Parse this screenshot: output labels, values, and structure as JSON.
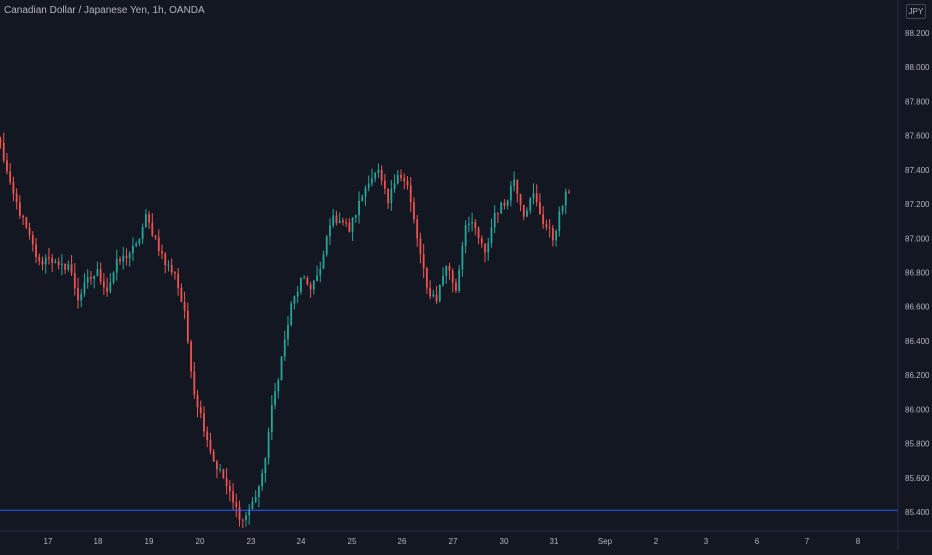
{
  "header": {
    "symbol_title": "Canadian Dollar / Japanese Yen, 1h, OANDA",
    "currency_label": "JPY"
  },
  "colors": {
    "background": "#131722",
    "bullish": "#26a69a",
    "bearish": "#ef5350",
    "axis_text": "#b2b5be",
    "horizontal_line": "#2962ff"
  },
  "chart_data": {
    "type": "candlestick",
    "title": "Canadian Dollar / Japanese Yen, 1h, OANDA",
    "xlabel": "",
    "ylabel": "",
    "ylim": [
      85.32,
      88.3
    ],
    "y_ticks": [
      88.2,
      88.0,
      87.8,
      87.6,
      87.4,
      87.2,
      87.0,
      86.8,
      86.6,
      86.4,
      86.2,
      86.0,
      85.8,
      85.6,
      85.4
    ],
    "y_tick_labels": [
      "88.200",
      "88.000",
      "87.800",
      "87.600",
      "87.400",
      "87.200",
      "87.000",
      "86.800",
      "86.600",
      "86.400",
      "86.200",
      "86.000",
      "85.800",
      "85.600",
      "85.400"
    ],
    "x_ticks": [
      "17",
      "18",
      "19",
      "20",
      "23",
      "24",
      "25",
      "26",
      "27",
      "30",
      "31",
      "Sep",
      "2",
      "3",
      "6",
      "7",
      "8"
    ],
    "horizontal_line": 85.41,
    "grid": false,
    "series": [
      {
        "path_points": [
          [
            87.55,
            87.3
          ],
          [
            87.3,
            87.15
          ],
          [
            87.15,
            87.0
          ],
          [
            87.0,
            86.85
          ],
          [
            86.85,
            86.9
          ],
          [
            86.9,
            86.82
          ],
          [
            86.82,
            86.85
          ],
          [
            86.85,
            86.65
          ],
          [
            86.65,
            86.75
          ],
          [
            86.75,
            86.8
          ],
          [
            86.8,
            86.7
          ],
          [
            86.7,
            86.85
          ],
          [
            86.85,
            86.9
          ],
          [
            86.9,
            86.95
          ],
          [
            86.95,
            87.12
          ],
          [
            87.12,
            87.0
          ],
          [
            87.0,
            86.85
          ],
          [
            86.85,
            86.8
          ],
          [
            86.8,
            86.55
          ],
          [
            86.55,
            86.1
          ],
          [
            86.1,
            85.9
          ],
          [
            85.9,
            85.7
          ],
          [
            85.7,
            85.6
          ],
          [
            85.6,
            85.45
          ],
          [
            85.45,
            85.35
          ],
          [
            85.35,
            85.45
          ],
          [
            85.45,
            85.6
          ],
          [
            85.6,
            86.0
          ],
          [
            86.0,
            86.3
          ],
          [
            86.3,
            86.6
          ],
          [
            86.6,
            86.75
          ],
          [
            86.75,
            86.72
          ],
          [
            86.72,
            86.8
          ],
          [
            86.8,
            87.1
          ],
          [
            87.1,
            87.12
          ],
          [
            87.12,
            87.05
          ],
          [
            87.05,
            87.2
          ],
          [
            87.2,
            87.35
          ],
          [
            87.35,
            87.38
          ],
          [
            87.38,
            87.2
          ],
          [
            87.2,
            87.4
          ],
          [
            87.4,
            87.3
          ],
          [
            87.3,
            87.0
          ],
          [
            87.0,
            86.7
          ],
          [
            86.7,
            86.65
          ],
          [
            86.65,
            86.85
          ],
          [
            86.85,
            86.7
          ],
          [
            86.7,
            87.1
          ],
          [
            87.1,
            87.05
          ],
          [
            87.05,
            86.9
          ],
          [
            86.9,
            87.15
          ],
          [
            87.15,
            87.2
          ],
          [
            87.2,
            87.35
          ],
          [
            87.35,
            87.15
          ],
          [
            87.15,
            87.25
          ],
          [
            87.25,
            87.1
          ],
          [
            87.1,
            87.0
          ],
          [
            87.0,
            87.2
          ],
          [
            87.2,
            87.33
          ]
        ]
      }
    ]
  }
}
